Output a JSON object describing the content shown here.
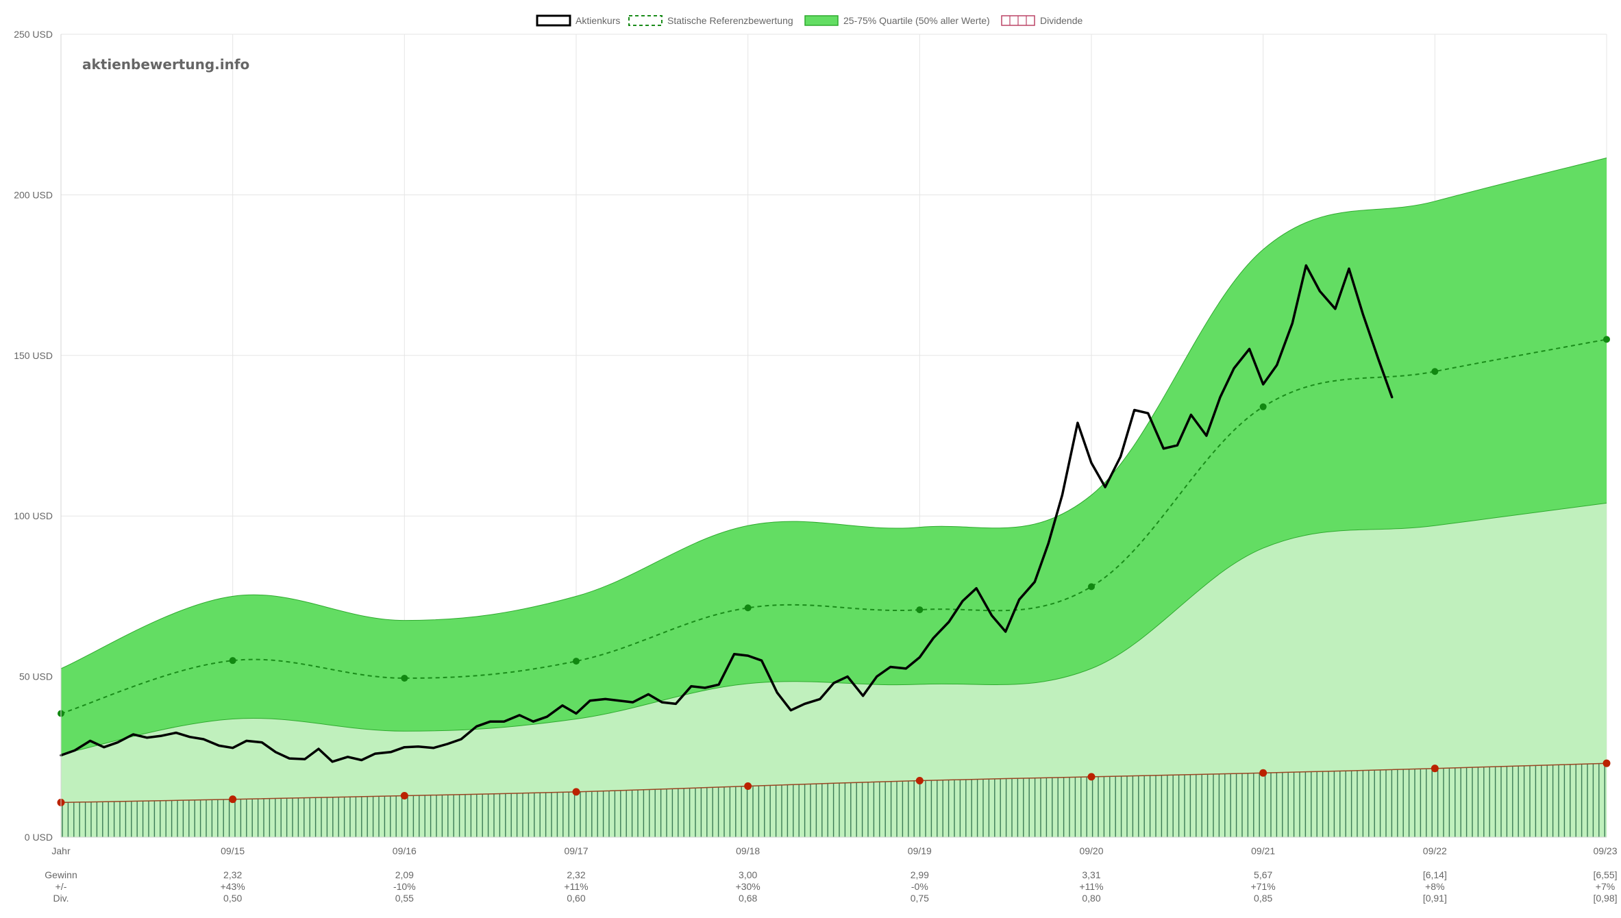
{
  "chart_data": {
    "type": "line",
    "watermark": "aktienbewertung.info",
    "legend": {
      "placement": "top-center",
      "items": [
        {
          "key": "price",
          "label": "Aktienkurs",
          "style": "solid-black"
        },
        {
          "key": "ref",
          "label": "Statische Referenzbewertung",
          "style": "dashed-green"
        },
        {
          "key": "band",
          "label": "25-75% Quartile (50% aller Werte)",
          "style": "fill-green"
        },
        {
          "key": "div",
          "label": "Dividende",
          "style": "hatched-red"
        }
      ]
    },
    "ylim": [
      0,
      250
    ],
    "yticks": [
      0,
      50,
      100,
      150,
      200,
      250
    ],
    "yunit": "USD",
    "xlim": [
      0,
      9
    ],
    "grid": true,
    "x_ticks": [
      {
        "x": 0,
        "label": "Jahr"
      },
      {
        "x": 1,
        "label": "09/15"
      },
      {
        "x": 2,
        "label": "09/16"
      },
      {
        "x": 3,
        "label": "09/17"
      },
      {
        "x": 4,
        "label": "09/18"
      },
      {
        "x": 5,
        "label": "09/19"
      },
      {
        "x": 6,
        "label": "09/20"
      },
      {
        "x": 7,
        "label": "09/21"
      },
      {
        "x": 8,
        "label": "09/22"
      },
      {
        "x": 9,
        "label": "09/23"
      }
    ],
    "table_rows": [
      {
        "label": "Gewinn",
        "values": [
          "2,32",
          "2,09",
          "2,32",
          "3,00",
          "2,99",
          "3,31",
          "5,67",
          "[6,14]",
          "[6,55]"
        ]
      },
      {
        "label": "+/-",
        "values": [
          "+43%",
          "-10%",
          "+11%",
          "+30%",
          "-0%",
          "+11%",
          "+71%",
          "+8%",
          "+7%"
        ]
      },
      {
        "label": "Div.",
        "values": [
          "0,50",
          "0,55",
          "0,60",
          "0,68",
          "0,75",
          "0,80",
          "0,85",
          "[0,91]",
          "[0,98]"
        ]
      }
    ],
    "colors": {
      "band": "#63dd63",
      "band_line": "#2eaa2e",
      "lower_fill": "#c0f0bd",
      "ref_line": "#1a8c1a",
      "ref_point": "#118811",
      "price": "#000000",
      "div_line": "#994422",
      "div_point": "#bb2200",
      "div_hatch": "#3b7a55",
      "grid": "#e5e5e5"
    },
    "reference": {
      "x": [
        0,
        1,
        2,
        3,
        4,
        5,
        6,
        7,
        8,
        9
      ],
      "y": [
        38.5,
        55.0,
        49.5,
        54.8,
        71.4,
        70.8,
        78.0,
        134.0,
        145.0,
        155.0
      ]
    },
    "band_upper": {
      "x": [
        0,
        1,
        2,
        3,
        4,
        5,
        6,
        7,
        8,
        9
      ],
      "y": [
        52.5,
        75.0,
        67.5,
        75.0,
        97.0,
        96.5,
        106.5,
        183.0,
        198.0,
        211.5
      ]
    },
    "band_lower": {
      "x": [
        0,
        1,
        2,
        3,
        4,
        5,
        6,
        7,
        8,
        9
      ],
      "y": [
        25.8,
        36.8,
        33.0,
        36.8,
        47.8,
        47.6,
        52.5,
        90.0,
        97.0,
        104.0
      ]
    },
    "dividend_curve": {
      "x": [
        0,
        1,
        2,
        3,
        4,
        5,
        6,
        7,
        8,
        9
      ],
      "y": [
        10.8,
        11.8,
        12.9,
        14.1,
        15.9,
        17.6,
        18.8,
        20.0,
        21.4,
        23.0
      ]
    },
    "price": {
      "x": [
        0,
        0.08,
        0.17,
        0.25,
        0.33,
        0.42,
        0.5,
        0.58,
        0.67,
        0.75,
        0.83,
        0.92,
        1.0,
        1.08,
        1.17,
        1.25,
        1.33,
        1.42,
        1.5,
        1.58,
        1.67,
        1.75,
        1.83,
        1.92,
        2.0,
        2.08,
        2.17,
        2.25,
        2.33,
        2.42,
        2.5,
        2.58,
        2.67,
        2.75,
        2.83,
        2.92,
        3.0,
        3.08,
        3.17,
        3.25,
        3.33,
        3.42,
        3.5,
        3.58,
        3.67,
        3.75,
        3.83,
        3.92,
        4.0,
        4.08,
        4.17,
        4.25,
        4.33,
        4.42,
        4.5,
        4.58,
        4.67,
        4.75,
        4.83,
        4.92,
        5.0,
        5.08,
        5.17,
        5.25,
        5.33,
        5.42,
        5.5,
        5.58,
        5.67,
        5.75,
        5.83,
        5.92,
        6.0,
        6.08,
        6.17,
        6.25,
        6.33,
        6.42,
        6.5,
        6.58,
        6.67,
        6.75,
        6.83,
        6.92,
        7.0,
        7.08,
        7.17,
        7.25,
        7.33,
        7.42,
        7.5,
        7.58,
        7.67,
        7.75
      ],
      "y": [
        25.5,
        27.0,
        30.0,
        28.0,
        29.5,
        32.0,
        31.0,
        31.5,
        32.5,
        31.2,
        30.5,
        28.5,
        27.8,
        30.0,
        29.5,
        26.5,
        24.5,
        24.3,
        27.5,
        23.5,
        25.0,
        24.0,
        26.0,
        26.5,
        28.0,
        28.2,
        27.8,
        29.0,
        30.5,
        34.5,
        36.0,
        36.0,
        38.0,
        36.0,
        37.5,
        41.0,
        38.5,
        42.5,
        43.0,
        42.5,
        42.0,
        44.5,
        42.0,
        41.5,
        47.0,
        46.5,
        47.5,
        57.0,
        56.5,
        55.0,
        45.0,
        39.5,
        41.5,
        43.0,
        48.0,
        50.0,
        44.0,
        50.0,
        53.0,
        52.5,
        56.0,
        62.0,
        67.0,
        73.5,
        77.5,
        69.0,
        64.0,
        74.0,
        79.5,
        91.5,
        106.5,
        129.0,
        116.5,
        109.0,
        118.5,
        133.0,
        132.0,
        121.0,
        122.0,
        131.5,
        125.0,
        137.0,
        146.0,
        152.0,
        141.0,
        147.0,
        160.0,
        178.0,
        170.0,
        164.5,
        177.0,
        163.0,
        149.0,
        137.0
      ]
    }
  }
}
